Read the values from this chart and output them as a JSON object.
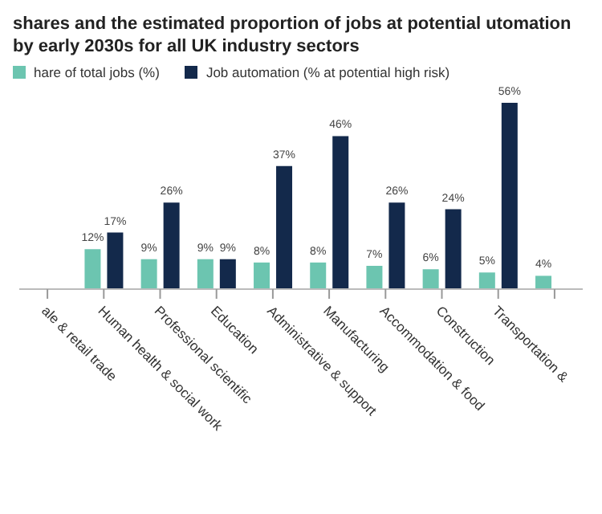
{
  "chart_data": {
    "type": "bar",
    "title": "shares and the estimated proportion of jobs at potential utomation by early 2030s for all UK industry sectors",
    "categories": [
      "ale & retail trade",
      "Human health & social work",
      "Professional scientific",
      "Education",
      "Administrative & support",
      "Manufacturing",
      "Accommodation & food",
      "Construction",
      "Transportation &",
      null
    ],
    "series": [
      {
        "name": "hare of total jobs (%)",
        "color": "#6cc5b0",
        "values": [
          null,
          12,
          9,
          9,
          8,
          8,
          7,
          6,
          5,
          4
        ],
        "value_labels": [
          null,
          "12%",
          "9%",
          "9%",
          "8%",
          "8%",
          "7%",
          "6%",
          "5%",
          "4%"
        ]
      },
      {
        "name": "Job automation (% at potential high risk)",
        "color": "#13294b",
        "values": [
          null,
          17,
          26,
          9,
          37,
          46,
          26,
          24,
          56,
          null
        ],
        "value_labels": [
          null,
          "17%",
          "26%",
          "9%",
          "37%",
          "46%",
          "26%",
          "24%",
          "56%",
          null
        ]
      }
    ],
    "legend": "top left"
  }
}
